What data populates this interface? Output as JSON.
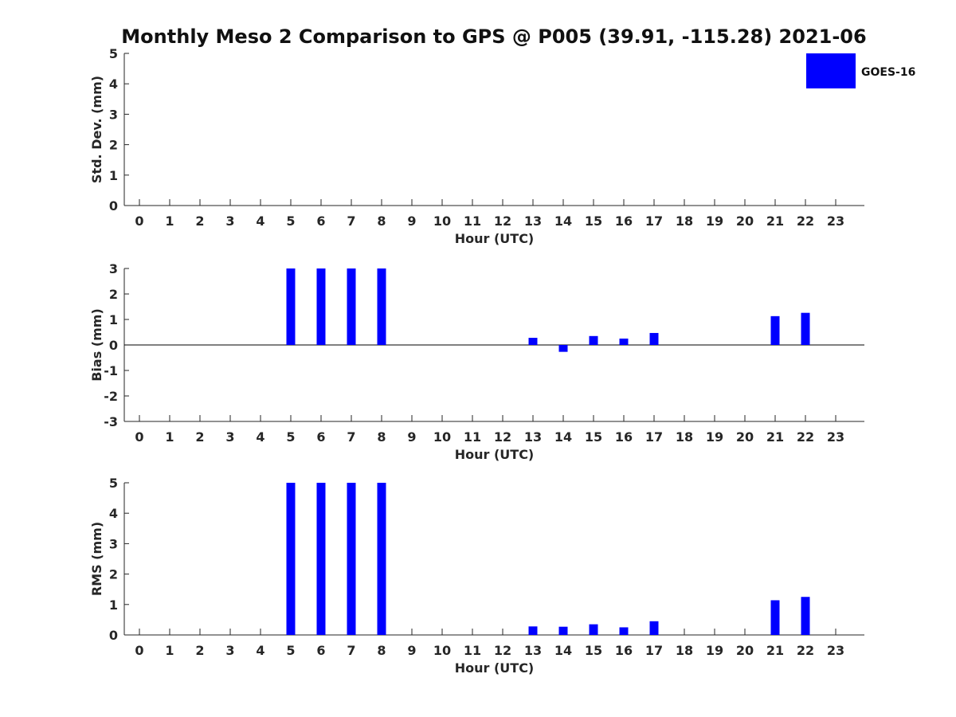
{
  "chart_data": {
    "title": "Monthly Meso 2 Comparison to GPS @ P005 (39.91, -115.28) 2021-06",
    "legend": {
      "label": "GOES-16",
      "color": "#0000ff",
      "placement": "top-right"
    },
    "hours": [
      0,
      1,
      2,
      3,
      4,
      5,
      6,
      7,
      8,
      9,
      10,
      11,
      12,
      13,
      14,
      15,
      16,
      17,
      18,
      19,
      20,
      21,
      22,
      23
    ],
    "panels": [
      {
        "type": "bar",
        "ylabel": "Std. Dev. (mm)",
        "xlabel": "Hour (UTC)",
        "ylim": [
          0,
          5
        ],
        "yticks": [
          0,
          1,
          2,
          3,
          4,
          5
        ],
        "values": [
          null,
          null,
          null,
          null,
          null,
          null,
          null,
          null,
          null,
          null,
          null,
          null,
          null,
          null,
          null,
          null,
          null,
          null,
          null,
          null,
          null,
          null,
          null,
          null
        ]
      },
      {
        "type": "bar",
        "ylabel": "Bias (mm)",
        "xlabel": "Hour (UTC)",
        "ylim": [
          -3,
          3
        ],
        "yticks": [
          -3,
          -2,
          -1,
          0,
          1,
          2,
          3
        ],
        "zero_line": true,
        "values": [
          null,
          null,
          null,
          null,
          null,
          3,
          3,
          3,
          3,
          null,
          null,
          null,
          null,
          0.28,
          -0.27,
          0.35,
          0.25,
          0.47,
          null,
          null,
          null,
          1.13,
          1.26,
          null
        ]
      },
      {
        "type": "bar",
        "ylabel": "RMS (mm)",
        "xlabel": "Hour (UTC)",
        "ylim": [
          0,
          5
        ],
        "yticks": [
          0,
          1,
          2,
          3,
          4,
          5
        ],
        "values": [
          null,
          null,
          null,
          null,
          null,
          5,
          5,
          5,
          5,
          null,
          null,
          null,
          null,
          0.28,
          0.27,
          0.35,
          0.25,
          0.45,
          null,
          null,
          null,
          1.14,
          1.25,
          null
        ]
      }
    ]
  }
}
